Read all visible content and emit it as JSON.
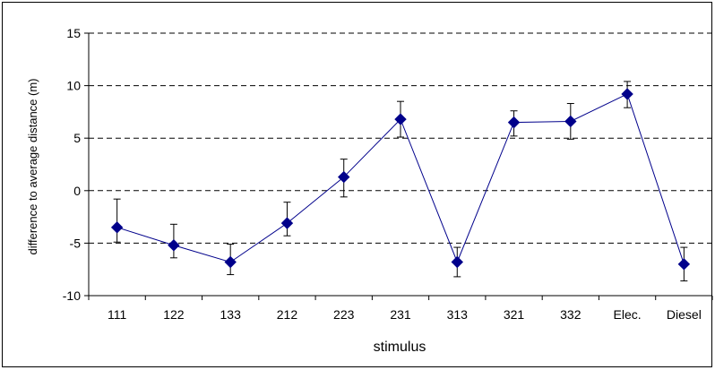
{
  "chart_data": {
    "type": "line",
    "title": "",
    "xlabel": "stimulus",
    "ylabel": "difference to average distance (m)",
    "ylim": [
      -10,
      15
    ],
    "yticks": [
      15,
      10,
      5,
      0,
      -5,
      -10
    ],
    "grid": "horizontal dashed",
    "legend": "none",
    "categories": [
      "111",
      "122",
      "133",
      "212",
      "223",
      "231",
      "313",
      "321",
      "332",
      "Elec.",
      "Diesel"
    ],
    "series": [
      {
        "values": [
          -3.5,
          -5.2,
          -6.8,
          -3.1,
          1.3,
          6.8,
          -6.8,
          6.5,
          6.6,
          9.2,
          -7.0
        ],
        "error_low": [
          -4.9,
          -6.4,
          -8.0,
          -4.3,
          -0.6,
          5.1,
          -8.2,
          5.2,
          4.9,
          7.9,
          -8.6
        ],
        "error_high": [
          -0.8,
          -3.2,
          -5.1,
          -1.1,
          3.0,
          8.5,
          -5.4,
          7.6,
          8.3,
          10.4,
          -5.4
        ],
        "color": "#00008B",
        "marker": "diamond"
      }
    ]
  }
}
